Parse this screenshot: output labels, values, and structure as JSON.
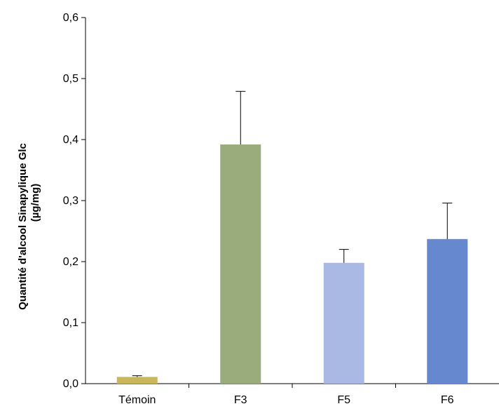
{
  "chart_data": {
    "type": "bar",
    "title": "",
    "xlabel": "",
    "ylabel_lines": [
      "Quantité d'alcool Sinapylique Glc",
      "(µg/mg)"
    ],
    "categories": [
      "Témoin",
      "F3",
      "F5",
      "F6"
    ],
    "values": [
      0.011,
      0.392,
      0.198,
      0.237
    ],
    "error_upper": [
      0.002,
      0.087,
      0.022,
      0.059
    ],
    "colors": [
      "#c9b55a",
      "#9aac7c",
      "#a9b9e3",
      "#6588ce"
    ],
    "ylim": [
      0,
      0.6
    ],
    "yticks": [
      "0,0",
      "0,1",
      "0,2",
      "0,3",
      "0,4",
      "0,5",
      "0,6"
    ],
    "grid": false,
    "legend": "none"
  }
}
